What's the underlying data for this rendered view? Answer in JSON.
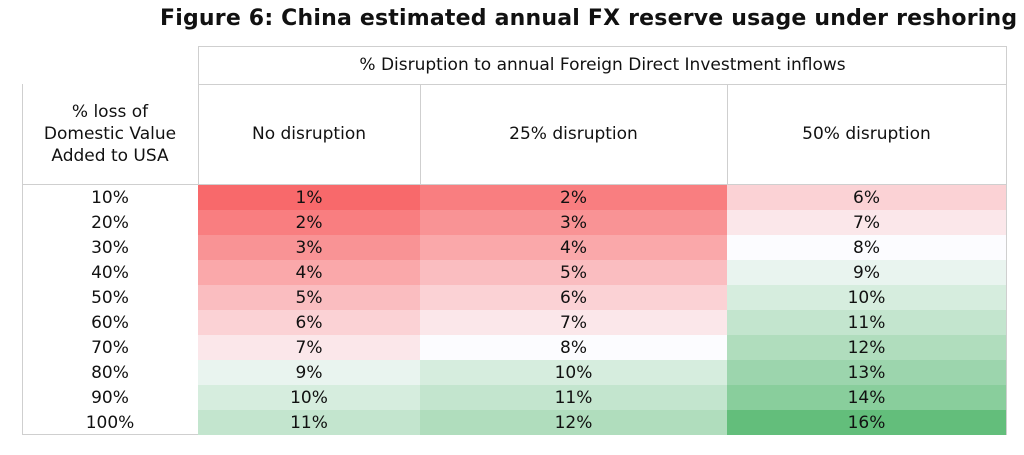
{
  "title": "Figure 6: China estimated annual FX reserve usage under reshoring",
  "column_group_header": "% Disruption to annual Foreign Direct Investment inflows",
  "row_header": "% loss of Domestic Value Added to USA",
  "columns": [
    "No disruption",
    "25% disruption",
    "50% disruption"
  ],
  "rows": [
    "10%",
    "20%",
    "30%",
    "40%",
    "50%",
    "60%",
    "70%",
    "80%",
    "90%",
    "100%"
  ],
  "chart_data": {
    "type": "heatmap",
    "title": "Figure 6: China estimated annual FX reserve usage under reshoring",
    "xlabel": "% Disruption to annual Foreign Direct Investment inflows",
    "ylabel": "% loss of Domestic Value Added to USA",
    "x": [
      "No disruption",
      "25% disruption",
      "50% disruption"
    ],
    "y": [
      "10%",
      "20%",
      "30%",
      "40%",
      "50%",
      "60%",
      "70%",
      "80%",
      "90%",
      "100%"
    ],
    "values": [
      [
        1,
        2,
        6
      ],
      [
        2,
        3,
        7
      ],
      [
        3,
        4,
        8
      ],
      [
        4,
        5,
        9
      ],
      [
        5,
        6,
        10
      ],
      [
        6,
        7,
        11
      ],
      [
        7,
        8,
        12
      ],
      [
        9,
        10,
        13
      ],
      [
        10,
        11,
        14
      ],
      [
        11,
        12,
        16
      ]
    ],
    "labels": [
      [
        "1%",
        "2%",
        "6%"
      ],
      [
        "2%",
        "3%",
        "7%"
      ],
      [
        "3%",
        "4%",
        "8%"
      ],
      [
        "4%",
        "5%",
        "9%"
      ],
      [
        "5%",
        "6%",
        "10%"
      ],
      [
        "6%",
        "7%",
        "11%"
      ],
      [
        "7%",
        "8%",
        "12%"
      ],
      [
        "9%",
        "10%",
        "13%"
      ],
      [
        "10%",
        "11%",
        "14%"
      ],
      [
        "11%",
        "12%",
        "16%"
      ]
    ],
    "color_scale": {
      "low": "#f8696b",
      "mid": "#fcfcff",
      "high": "#63be7b",
      "low_value": 1,
      "mid_value": 8,
      "high_value": 16
    }
  }
}
